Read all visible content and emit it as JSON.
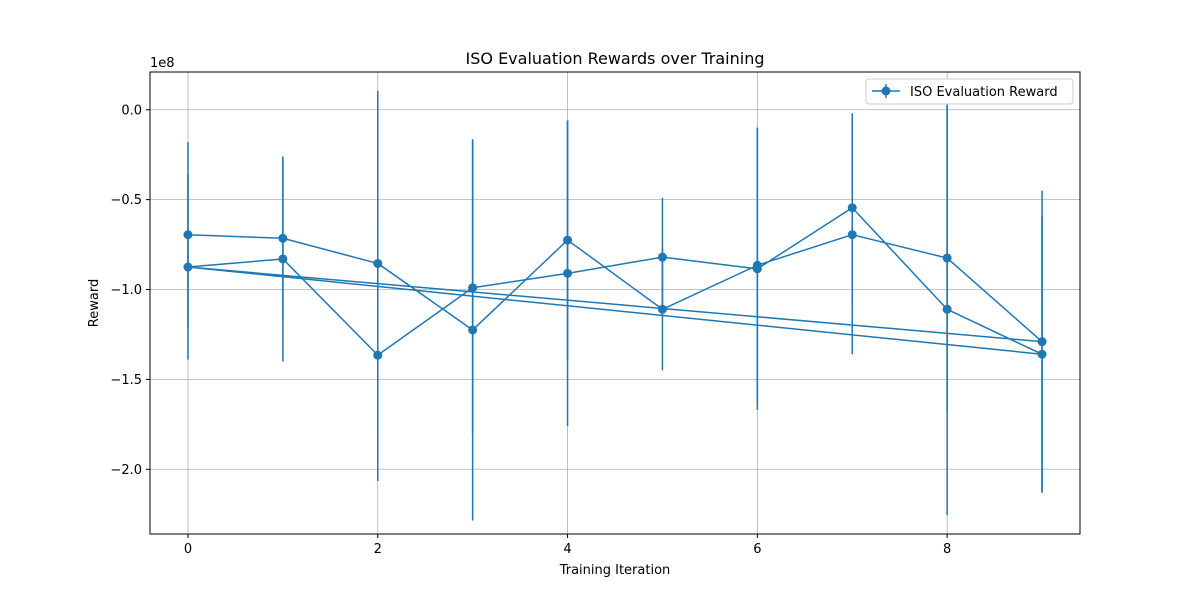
{
  "chart_data": {
    "type": "line",
    "title": "ISO Evaluation Rewards over Training",
    "xlabel": "Training Iteration",
    "ylabel": "Reward",
    "y_offset_label": "1e8",
    "y_scale_factor": 100000000,
    "xlim": [
      -0.4,
      9.4
    ],
    "ylim": [
      -236000000,
      21000000
    ],
    "x_ticks": [
      0,
      2,
      4,
      6,
      8
    ],
    "x_tick_labels": [
      "0",
      "2",
      "4",
      "6",
      "8"
    ],
    "y_ticks": [
      0,
      -50000000,
      -100000000,
      -150000000,
      -200000000
    ],
    "y_tick_labels": [
      "0.0",
      "−0.5",
      "−1.0",
      "−1.5",
      "−2.0"
    ],
    "grid": true,
    "legend_position": "top-right",
    "color": "#1f77b4",
    "series": [
      {
        "name": "ISO Evaluation Reward",
        "points": [
          {
            "x": 0,
            "y": -69500000,
            "err": 51500000
          },
          {
            "x": 1,
            "y": -71500000,
            "err": 45500000
          },
          {
            "x": 2,
            "y": -85500000,
            "err": 96000000
          },
          {
            "x": 3,
            "y": -122500000,
            "err": 106000000
          },
          {
            "x": 4,
            "y": -72500000,
            "err": 66500000
          },
          {
            "x": 5,
            "y": -111000000,
            "err": 34000000
          },
          {
            "x": 6,
            "y": -86500000,
            "err": 76500000
          },
          {
            "x": 7,
            "y": -69500000,
            "err": 66500000
          },
          {
            "x": 8,
            "y": -82500000,
            "err": 86000000
          },
          {
            "x": 9,
            "y": -129000000,
            "err": 84000000
          },
          {
            "x": 0,
            "y": -87500000,
            "err": 51500000
          },
          {
            "x": 1,
            "y": -83000000,
            "err": 57000000
          },
          {
            "x": 2,
            "y": -136500000,
            "err": 70000000
          },
          {
            "x": 3,
            "y": -99000000,
            "err": 82500000
          },
          {
            "x": 4,
            "y": -91000000,
            "err": 85000000
          },
          {
            "x": 5,
            "y": -82000000,
            "err": 33000000
          },
          {
            "x": 6,
            "y": -88500000,
            "err": 78500000
          },
          {
            "x": 7,
            "y": -54500000,
            "err": 52500000
          },
          {
            "x": 8,
            "y": -111000000,
            "err": 114500000
          },
          {
            "x": 9,
            "y": -136000000,
            "err": 77000000
          },
          {
            "x": 0,
            "y": -87500000,
            "err": 51500000
          }
        ]
      }
    ]
  }
}
